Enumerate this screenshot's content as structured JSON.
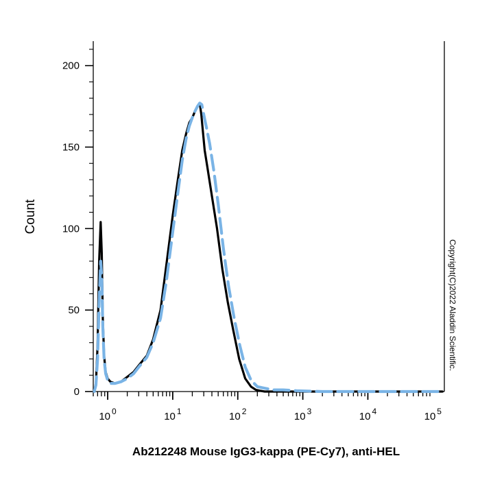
{
  "chart_data": {
    "type": "line",
    "xscale": "log",
    "xlim": [
      0.6,
      150000
    ],
    "ylim": [
      0,
      215
    ],
    "x_tick_labels": [
      {
        "value": 1,
        "base": "10",
        "exp": "0"
      },
      {
        "value": 10,
        "base": "10",
        "exp": "1"
      },
      {
        "value": 100,
        "base": "10",
        "exp": "2"
      },
      {
        "value": 1000,
        "base": "10",
        "exp": "3"
      },
      {
        "value": 10000,
        "base": "10",
        "exp": "4"
      },
      {
        "value": 100000,
        "base": "10",
        "exp": "5"
      }
    ],
    "y_ticks": [
      0,
      50,
      100,
      150,
      200
    ],
    "ylabel": "Count",
    "xlabel": "",
    "caption": "Ab212248  Mouse IgG3-kappa (PE-Cy7), anti-HEL",
    "side_text": "Copyright(C)2022 Aladdin Scientific.",
    "series": [
      {
        "color": "#000000",
        "style": "solid",
        "x": [
          0.62,
          0.66,
          0.7,
          0.74,
          0.78,
          0.81,
          0.84,
          0.88,
          0.93,
          1.0,
          1.1,
          1.3,
          1.6,
          2.0,
          2.5,
          3.0,
          4.0,
          5.0,
          6.5,
          8.0,
          10.0,
          12.0,
          14.0,
          16.0,
          18.0,
          20.0,
          22.0,
          24.0,
          26.0,
          27.5,
          29.0,
          31.0,
          34.0,
          40.0,
          48.0,
          58.0,
          70.0,
          85.0,
          105.0,
          130.0,
          160.0,
          190.0,
          220.0,
          260.0,
          320.0,
          500.0,
          1000.0,
          10000.0,
          100000.0,
          140000.0
        ],
        "y": [
          0,
          5,
          28,
          80,
          104,
          85,
          45,
          22,
          12,
          8,
          6,
          5,
          6,
          9,
          12,
          16,
          22,
          32,
          50,
          78,
          108,
          130,
          148,
          158,
          165,
          168,
          172,
          175,
          177,
          170,
          160,
          148,
          138,
          120,
          100,
          75,
          55,
          38,
          20,
          8,
          3,
          1,
          0.5,
          0,
          0,
          0,
          0,
          0,
          0,
          0
        ]
      },
      {
        "color": "#7ab4e6",
        "style": "dashed",
        "x": [
          0.62,
          0.66,
          0.7,
          0.74,
          0.78,
          0.81,
          0.84,
          0.88,
          0.93,
          1.0,
          1.1,
          1.3,
          1.6,
          2.0,
          2.5,
          3.0,
          4.0,
          5.0,
          6.5,
          8.0,
          10.0,
          12.0,
          14.0,
          16.0,
          18.0,
          20.0,
          22.0,
          24.0,
          26.0,
          28.0,
          30.0,
          33.0,
          37.0,
          43.0,
          50.0,
          60.0,
          72.0,
          88.0,
          108.0,
          130.0,
          160.0,
          200.0,
          260.0,
          350.0,
          500.0,
          800.0,
          2000.0,
          10000.0,
          100000.0,
          140000.0
        ],
        "y": [
          0,
          4,
          20,
          55,
          80,
          70,
          40,
          20,
          11,
          7,
          5,
          5,
          6,
          8,
          11,
          15,
          21,
          30,
          45,
          68,
          98,
          122,
          142,
          155,
          163,
          168,
          172,
          175,
          177,
          176,
          170,
          162,
          152,
          135,
          115,
          88,
          65,
          45,
          28,
          15,
          7,
          3,
          2,
          1,
          1,
          0.5,
          0,
          0,
          0,
          0
        ]
      }
    ]
  }
}
